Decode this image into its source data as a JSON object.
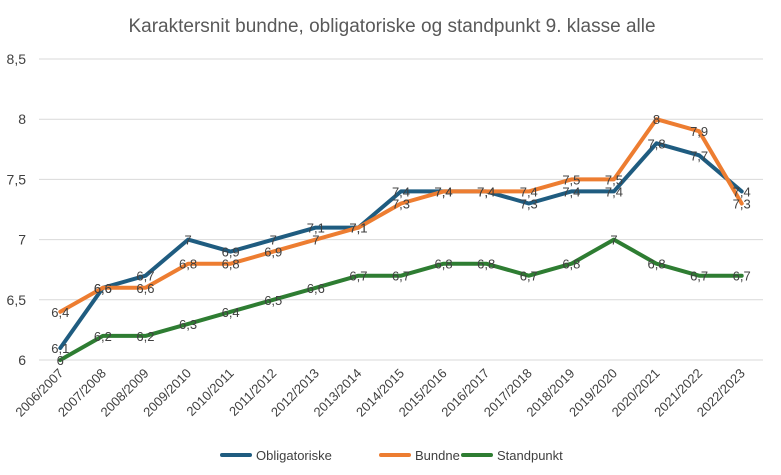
{
  "chart_data": {
    "type": "line",
    "title": "Karaktersnit bundne, obligatoriske og standpunkt 9. klasse alle",
    "xlabel": "",
    "ylabel": "",
    "ylim": [
      6,
      8.5
    ],
    "yticks": [
      6,
      6.5,
      7,
      7.5,
      8,
      8.5
    ],
    "ytick_labels": [
      "6",
      "6,5",
      "7",
      "7,5",
      "8",
      "8,5"
    ],
    "grid": true,
    "legend": "bottom",
    "categories": [
      "2006/2007",
      "2007/2008",
      "2008/2009",
      "2009/2010",
      "2010/2011",
      "2011/2012",
      "2012/2013",
      "2013/2014",
      "2014/2015",
      "2015/2016",
      "2016/2017",
      "2017/2018",
      "2018/2019",
      "2019/2020",
      "2020/2021",
      "2021/2022",
      "2022/2023"
    ],
    "series": [
      {
        "name": "Obligatoriske",
        "color": "#1f5c80",
        "values": [
          6.1,
          6.6,
          6.7,
          7.0,
          6.9,
          7.0,
          7.1,
          7.1,
          7.4,
          7.4,
          7.4,
          7.3,
          7.4,
          7.4,
          7.8,
          7.7,
          7.4
        ],
        "labels": [
          "6,1",
          "6,6",
          "6,7",
          "7",
          "6,9",
          "7",
          "7,1",
          "7,1",
          "7,4",
          "7,4",
          "7,4",
          "7,3",
          "7,4",
          "7,4",
          "7,8",
          "7,7",
          "7,4"
        ]
      },
      {
        "name": "Bundne",
        "color": "#ed7d31",
        "values": [
          6.4,
          6.6,
          6.6,
          6.8,
          6.8,
          6.9,
          7.0,
          7.1,
          7.3,
          7.4,
          7.4,
          7.4,
          7.5,
          7.5,
          8.0,
          7.9,
          7.3
        ],
        "labels": [
          "6,4",
          "6,6",
          "6,6",
          "6,8",
          "6,8",
          "6,9",
          "7",
          "7,1",
          "7,3",
          "7,4",
          "7,4",
          "7,4",
          "7,5",
          "7,5",
          "8",
          "7,9",
          "7,3"
        ]
      },
      {
        "name": "Standpunkt",
        "color": "#2e7d32",
        "values": [
          6.0,
          6.2,
          6.2,
          6.3,
          6.4,
          6.5,
          6.6,
          6.7,
          6.7,
          6.8,
          6.8,
          6.7,
          6.8,
          7.0,
          6.8,
          6.7,
          6.7
        ],
        "labels": [
          "6",
          "6,2",
          "6,2",
          "6,3",
          "6,4",
          "6,5",
          "6,6",
          "6,7",
          "6,7",
          "6,8",
          "6,8",
          "6,7",
          "6,8",
          "7",
          "6,8",
          "6,7",
          "6,7"
        ]
      }
    ]
  }
}
